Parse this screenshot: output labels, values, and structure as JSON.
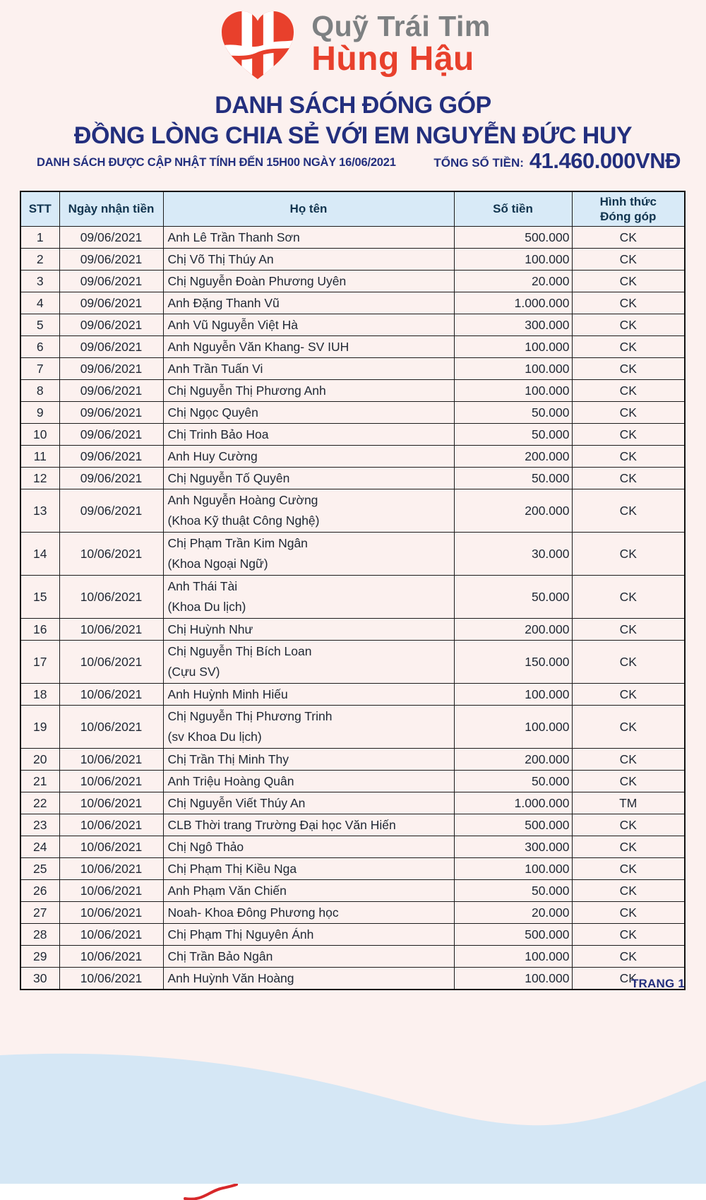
{
  "logo": {
    "line1": "Quỹ Trái Tim",
    "line2": "Hùng Hậu"
  },
  "title": {
    "line1": "DANH SÁCH ĐÓNG GÓP",
    "line2": "ĐỒNG LÒNG CHIA SẺ VỚI EM NGUYỄN ĐỨC HUY"
  },
  "update_note": "DANH SÁCH ĐƯỢC CẬP NHẬT TÍNH ĐẾN 15H00 NGÀY 16/06/2021",
  "total": {
    "label": "TỔNG SỐ TIỀN:",
    "amount": "41.460.000VNĐ"
  },
  "table": {
    "headers": {
      "stt": "STT",
      "date": "Ngày nhận tiền",
      "name": "Họ tên",
      "amount": "Số tiền",
      "method_line1": "Hình thức",
      "method_line2": "Đóng góp"
    },
    "rows": [
      {
        "stt": "1",
        "date": "09/06/2021",
        "name": "Anh Lê Trần Thanh Sơn",
        "amount": "500.000",
        "method": "CK"
      },
      {
        "stt": "2",
        "date": "09/06/2021",
        "name": "Chị Võ Thị Thúy An",
        "amount": "100.000",
        "method": "CK"
      },
      {
        "stt": "3",
        "date": "09/06/2021",
        "name": "Chị Nguyễn Đoàn Phương Uyên",
        "amount": "20.000",
        "method": "CK"
      },
      {
        "stt": "4",
        "date": "09/06/2021",
        "name": "Anh Đặng Thanh Vũ",
        "amount": "1.000.000",
        "method": "CK"
      },
      {
        "stt": "5",
        "date": "09/06/2021",
        "name": "Anh Vũ Nguyễn Việt Hà",
        "amount": "300.000",
        "method": "CK"
      },
      {
        "stt": "6",
        "date": "09/06/2021",
        "name": "Anh Nguyễn Văn Khang- SV IUH",
        "amount": "100.000",
        "method": "CK"
      },
      {
        "stt": "7",
        "date": "09/06/2021",
        "name": "Anh Trần Tuấn Vi",
        "amount": "100.000",
        "method": "CK"
      },
      {
        "stt": "8",
        "date": "09/06/2021",
        "name": "Chị Nguyễn Thị Phương Anh",
        "amount": "100.000",
        "method": "CK"
      },
      {
        "stt": "9",
        "date": "09/06/2021",
        "name": "Chị Ngọc Quyên",
        "amount": "50.000",
        "method": "CK"
      },
      {
        "stt": "10",
        "date": "09/06/2021",
        "name": "Chị Trinh Bảo Hoa",
        "amount": "50.000",
        "method": "CK"
      },
      {
        "stt": "11",
        "date": "09/06/2021",
        "name": "Anh Huy Cường",
        "amount": "200.000",
        "method": "CK"
      },
      {
        "stt": "12",
        "date": "09/06/2021",
        "name": "Chị Nguyễn Tố Quyên",
        "amount": "50.000",
        "method": "CK"
      },
      {
        "stt": "13",
        "date": "09/06/2021",
        "name": "Anh Nguyễn Hoàng Cường",
        "name2": "(Khoa Kỹ thuật Công Nghệ)",
        "amount": "200.000",
        "method": "CK"
      },
      {
        "stt": "14",
        "date": "10/06/2021",
        "name": "Chị Phạm Trần Kim Ngân",
        "name2": "(Khoa Ngoại Ngữ)",
        "amount": "30.000",
        "method": "CK"
      },
      {
        "stt": "15",
        "date": "10/06/2021",
        "name": "Anh Thái Tài",
        "name2": "(Khoa Du lịch)",
        "amount": "50.000",
        "method": "CK"
      },
      {
        "stt": "16",
        "date": "10/06/2021",
        "name": "Chị Huỳnh Như",
        "amount": "200.000",
        "method": "CK"
      },
      {
        "stt": "17",
        "date": "10/06/2021",
        "name": "Chị Nguyễn Thị Bích Loan",
        "name2": "(Cựu SV)",
        "amount": "150.000",
        "method": "CK"
      },
      {
        "stt": "18",
        "date": "10/06/2021",
        "name": "Anh Huỳnh Minh Hiếu",
        "amount": "100.000",
        "method": "CK"
      },
      {
        "stt": "19",
        "date": "10/06/2021",
        "name": "Chị Nguyễn Thị Phương Trinh",
        "name2": "(sv Khoa Du lịch)",
        "amount": "100.000",
        "method": "CK"
      },
      {
        "stt": "20",
        "date": "10/06/2021",
        "name": "Chị Trần Thị Minh Thy",
        "amount": "200.000",
        "method": "CK"
      },
      {
        "stt": "21",
        "date": "10/06/2021",
        "name": "Anh Triệu Hoàng Quân",
        "amount": "50.000",
        "method": "CK"
      },
      {
        "stt": "22",
        "date": "10/06/2021",
        "name": "Chị Nguyễn Viết Thúy An",
        "amount": "1.000.000",
        "method": "TM"
      },
      {
        "stt": "23",
        "date": "10/06/2021",
        "name": "CLB Thời trang Trường Đại học Văn Hiến",
        "amount": "500.000",
        "method": "CK"
      },
      {
        "stt": "24",
        "date": "10/06/2021",
        "name": "Chị Ngô Thảo",
        "amount": "300.000",
        "method": "CK"
      },
      {
        "stt": "25",
        "date": "10/06/2021",
        "name": "Chị Phạm Thị Kiều Nga",
        "amount": "100.000",
        "method": "CK"
      },
      {
        "stt": "26",
        "date": "10/06/2021",
        "name": "Anh Phạm Văn Chiến",
        "amount": "50.000",
        "method": "CK"
      },
      {
        "stt": "27",
        "date": "10/06/2021",
        "name": "Noah- Khoa Đông Phương học",
        "amount": "20.000",
        "method": "CK"
      },
      {
        "stt": "28",
        "date": "10/06/2021",
        "name": "Chị Phạm Thị Nguyên Ánh",
        "amount": "500.000",
        "method": "CK"
      },
      {
        "stt": "29",
        "date": "10/06/2021",
        "name": "Chị Trần Bảo Ngân",
        "amount": "100.000",
        "method": "CK"
      },
      {
        "stt": "30",
        "date": "10/06/2021",
        "name": "Anh Huỳnh Văn Hoàng",
        "amount": "100.000",
        "method": "CK"
      }
    ]
  },
  "footer": {
    "page": "TRANG 1"
  },
  "colors": {
    "page_bg": "#fcf1ef",
    "accent_navy": "#232f7e",
    "brand_red": "#e8402c",
    "brand_gray": "#7d8082",
    "table_header_bg": "#d8eaf7",
    "wave_blue": "#d5e7f5"
  }
}
